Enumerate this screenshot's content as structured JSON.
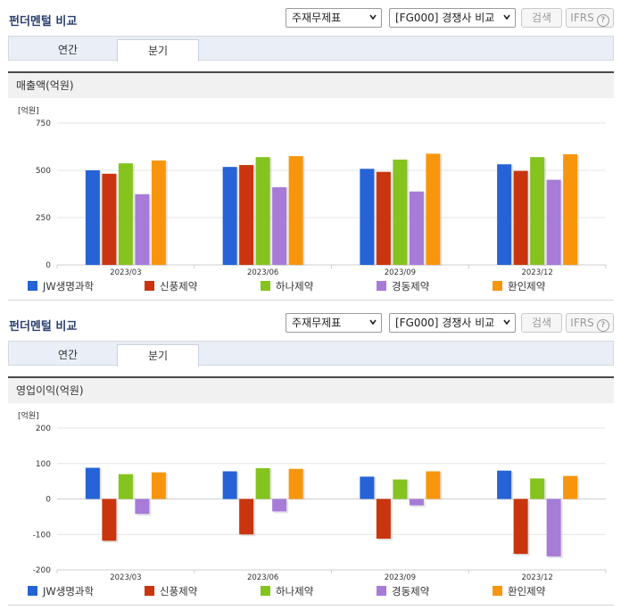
{
  "panels": [
    {
      "title": "펀더멘털 비교",
      "select1": "주재무제표",
      "select2": "[FG000] 경쟁사 비교",
      "search_button": "검색",
      "ifrs_button": "IFRS",
      "tabs": [
        "연간",
        "분기"
      ],
      "active_tab": "분기",
      "section_title": "매출액(억원)"
    },
    {
      "title": "펀더멘털 비교",
      "select1": "주재무제표",
      "select2": "[FG000] 경쟁사 비교",
      "search_button": "검색",
      "ifrs_button": "IFRS",
      "tabs": [
        "연간",
        "분기"
      ],
      "active_tab": "분기",
      "section_title": "영업이익(억원)"
    }
  ],
  "colors": {
    "JW생명과학": "#2563d6",
    "신풍제약": "#c9350e",
    "하나제약": "#85c31f",
    "경동제약": "#a77bd8",
    "환인제약": "#f7960d"
  },
  "chart_data": [
    {
      "type": "bar",
      "unit_label": "[억원]",
      "categories": [
        "2023/03",
        "2023/06",
        "2023/09",
        "2023/12"
      ],
      "ylim": [
        0,
        750
      ],
      "yticks": [
        0,
        250,
        500,
        750
      ],
      "grid": true,
      "legend_position": "bottom",
      "series": [
        {
          "name": "JW생명과학",
          "values": [
            500,
            518,
            508,
            532
          ]
        },
        {
          "name": "신풍제약",
          "values": [
            482,
            528,
            492,
            497
          ]
        },
        {
          "name": "하나제약",
          "values": [
            537,
            570,
            557,
            570
          ]
        },
        {
          "name": "경동제약",
          "values": [
            374,
            411,
            388,
            450
          ]
        },
        {
          "name": "환인제약",
          "values": [
            552,
            575,
            588,
            585
          ]
        }
      ]
    },
    {
      "type": "bar",
      "unit_label": "[억원]",
      "categories": [
        "2023/03",
        "2023/06",
        "2023/09",
        "2023/12"
      ],
      "ylim": [
        -200,
        200
      ],
      "yticks": [
        -200,
        -100,
        0,
        100,
        200
      ],
      "grid": true,
      "legend_position": "bottom",
      "series": [
        {
          "name": "JW생명과학",
          "values": [
            88,
            78,
            63,
            80
          ]
        },
        {
          "name": "신풍제약",
          "values": [
            -118,
            -100,
            -112,
            -155
          ]
        },
        {
          "name": "하나제약",
          "values": [
            70,
            87,
            55,
            58
          ]
        },
        {
          "name": "경동제약",
          "values": [
            -42,
            -35,
            -18,
            -162
          ]
        },
        {
          "name": "환인제약",
          "values": [
            75,
            85,
            78,
            65
          ]
        }
      ]
    }
  ]
}
